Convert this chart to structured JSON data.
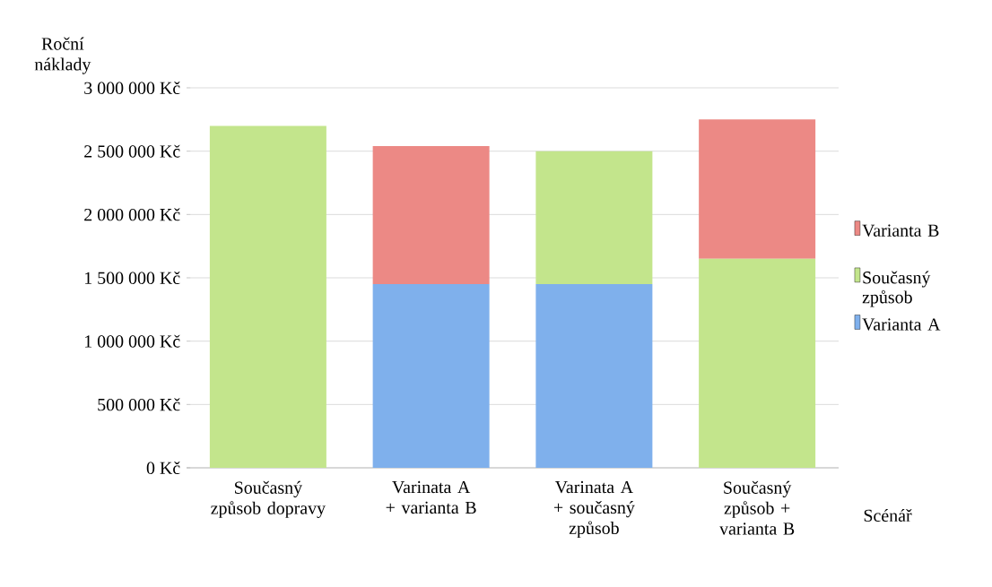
{
  "chart_data": {
    "type": "bar",
    "stacked": true,
    "xlabel": "Scénář",
    "ylabel": "Roční náklady",
    "categories": [
      "Současný způsob dopravy",
      "Varinata A + varianta B",
      "Varinata A + současný způsob",
      "Současný způsob + varianta B"
    ],
    "series": [
      {
        "name": "Varianta A",
        "color": "#7fb0ec",
        "values": [
          null,
          1450000,
          1450000,
          null
        ]
      },
      {
        "name": "Současný způsob",
        "color": "#c3e58c",
        "values": [
          2700000,
          null,
          1050000,
          1650000
        ]
      },
      {
        "name": "Varianta B",
        "color": "#ec8985",
        "values": [
          null,
          1090000,
          null,
          1100000
        ]
      }
    ],
    "ylim": [
      0,
      3000000
    ],
    "yticks": [
      {
        "value": 0,
        "label": "0 Kč"
      },
      {
        "value": 500000,
        "label": "500 000 Kč"
      },
      {
        "value": 1000000,
        "label": "1 000 000 Kč"
      },
      {
        "value": 1500000,
        "label": "1 500 000 Kč"
      },
      {
        "value": 2000000,
        "label": "2 000 000 Kč"
      },
      {
        "value": 2500000,
        "label": "2 500 000 Kč"
      },
      {
        "value": 3000000,
        "label": "3 000 000 Kč"
      }
    ],
    "grid": "y",
    "legend": "right"
  }
}
